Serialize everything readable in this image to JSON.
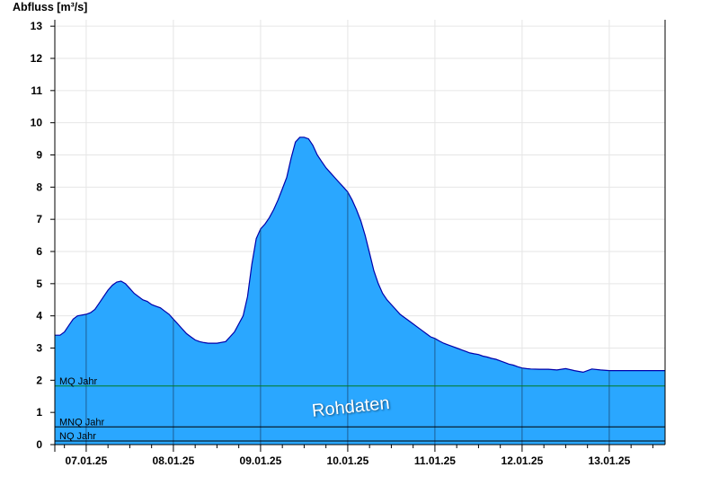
{
  "chart_data": {
    "type": "area",
    "ylabel": "Abfluss [m³/s]",
    "ylim": [
      0,
      13.2
    ],
    "yticks": [
      0,
      1,
      2,
      3,
      4,
      5,
      6,
      7,
      8,
      9,
      10,
      11,
      12,
      13
    ],
    "x_range_days": [
      6.64,
      13.64
    ],
    "day_labels": [
      "07.01.25",
      "08.01.25",
      "09.01.25",
      "10.01.25",
      "11.01.25",
      "12.01.25",
      "13.01.25"
    ],
    "grid": true,
    "colors": {
      "fill": "#2aa7ff",
      "line": "#0000aa",
      "mq": "#007a20",
      "mnq": "#000000",
      "nq": "#000000",
      "grid": "#e6e6e6"
    },
    "reference_lines": [
      {
        "name": "MQ Jahr",
        "value": 1.82
      },
      {
        "name": "MNQ Jahr",
        "value": 0.55
      },
      {
        "name": "NQ Jahr",
        "value": 0.11
      }
    ],
    "watermark": "Rohdaten",
    "series": [
      {
        "x": [
          6.64,
          6.7,
          6.75,
          6.8,
          6.85,
          6.9,
          7.0,
          7.05,
          7.1,
          7.15,
          7.2,
          7.25,
          7.3,
          7.35,
          7.4,
          7.45,
          7.5,
          7.55,
          7.6,
          7.65,
          7.7,
          7.75,
          7.8,
          7.85,
          7.9,
          7.95,
          8.0,
          8.05,
          8.1,
          8.15,
          8.2,
          8.25,
          8.3,
          8.35,
          8.4,
          8.45,
          8.5,
          8.6,
          8.7,
          8.8,
          8.85,
          8.9,
          8.95,
          9.0,
          9.05,
          9.1,
          9.15,
          9.2,
          9.25,
          9.3,
          9.35,
          9.4,
          9.45,
          9.5,
          9.55,
          9.6,
          9.65,
          9.7,
          9.75,
          9.8,
          9.85,
          9.9,
          9.95,
          10.0,
          10.05,
          10.1,
          10.15,
          10.2,
          10.25,
          10.3,
          10.35,
          10.4,
          10.45,
          10.5,
          10.55,
          10.6,
          10.65,
          10.7,
          10.75,
          10.8,
          10.85,
          10.9,
          10.95,
          11.0,
          11.05,
          11.1,
          11.15,
          11.2,
          11.25,
          11.3,
          11.35,
          11.4,
          11.45,
          11.5,
          11.55,
          11.6,
          11.65,
          11.7,
          11.75,
          11.8,
          11.85,
          11.9,
          11.95,
          12.0,
          12.05,
          12.1,
          12.2,
          12.3,
          12.4,
          12.5,
          12.6,
          12.7,
          12.8,
          12.9,
          13.0,
          13.1,
          13.15,
          13.2,
          13.25,
          13.3,
          13.35,
          13.4,
          13.45,
          13.5,
          13.55,
          13.64
        ],
        "y": [
          3.4,
          3.4,
          3.5,
          3.7,
          3.9,
          4.0,
          4.05,
          4.1,
          4.2,
          4.4,
          4.6,
          4.8,
          4.95,
          5.05,
          5.08,
          5.0,
          4.85,
          4.7,
          4.6,
          4.5,
          4.45,
          4.35,
          4.3,
          4.25,
          4.15,
          4.05,
          3.9,
          3.75,
          3.6,
          3.45,
          3.35,
          3.25,
          3.2,
          3.17,
          3.15,
          3.15,
          3.15,
          3.2,
          3.5,
          4.0,
          4.6,
          5.6,
          6.4,
          6.7,
          6.85,
          7.05,
          7.3,
          7.6,
          7.95,
          8.3,
          8.9,
          9.4,
          9.55,
          9.55,
          9.5,
          9.3,
          9.0,
          8.8,
          8.6,
          8.45,
          8.3,
          8.15,
          8.0,
          7.85,
          7.6,
          7.3,
          6.95,
          6.5,
          5.95,
          5.4,
          5.0,
          4.7,
          4.5,
          4.35,
          4.2,
          4.05,
          3.95,
          3.85,
          3.75,
          3.65,
          3.55,
          3.45,
          3.35,
          3.3,
          3.22,
          3.15,
          3.1,
          3.05,
          3.0,
          2.95,
          2.9,
          2.85,
          2.82,
          2.8,
          2.75,
          2.72,
          2.68,
          2.65,
          2.6,
          2.55,
          2.5,
          2.47,
          2.42,
          2.38,
          2.36,
          2.35,
          2.34,
          2.34,
          2.32,
          2.36,
          2.3,
          2.25,
          2.35,
          2.32,
          2.3,
          2.3,
          2.3,
          2.3,
          2.3,
          2.3,
          2.3,
          2.3,
          2.3,
          2.3,
          2.3,
          2.3
        ]
      }
    ]
  }
}
